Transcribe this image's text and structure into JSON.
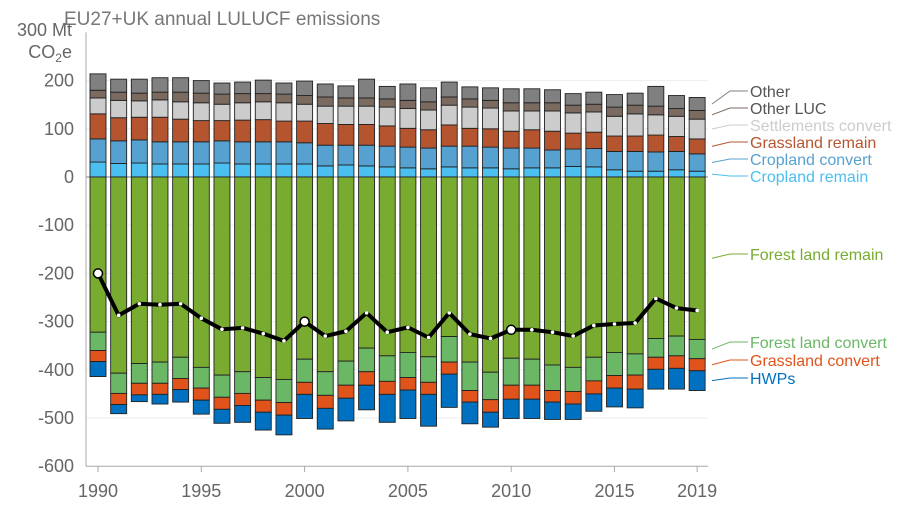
{
  "chart_data": {
    "type": "bar",
    "stacked": true,
    "title": "EU27+UK annual LULUCF emissions",
    "ylabel_line1": "300 Mt",
    "ylabel_line2": "CO",
    "ylabel_sub": "2",
    "ylabel_suffix": "e",
    "ylim": [
      -600,
      300
    ],
    "yticks": [
      200,
      100,
      0,
      -100,
      -200,
      -300,
      -400,
      -500,
      -600
    ],
    "xticks": [
      1990,
      1995,
      2000,
      2005,
      2010,
      2015,
      2019
    ],
    "grid": true,
    "legend_placement": "right",
    "x": [
      1990,
      1991,
      1992,
      1993,
      1994,
      1995,
      1996,
      1997,
      1998,
      1999,
      2000,
      2001,
      2002,
      2003,
      2004,
      2005,
      2006,
      2007,
      2008,
      2009,
      2010,
      2011,
      2012,
      2013,
      2014,
      2015,
      2016,
      2017,
      2018,
      2019
    ],
    "series": [
      {
        "name": "Cropland remain",
        "color": "#4bbfef",
        "values": [
          31,
          28,
          29,
          27,
          27,
          27,
          29,
          27,
          27,
          27,
          27,
          23,
          25,
          23,
          21,
          19,
          17,
          21,
          19,
          19,
          17,
          19,
          19,
          22,
          21,
          15,
          12,
          12,
          15,
          12
        ]
      },
      {
        "name": "Cropland convert",
        "color": "#57a1d0",
        "values": [
          48,
          47,
          48,
          46,
          46,
          46,
          46,
          46,
          46,
          46,
          44,
          43,
          41,
          43,
          43,
          43,
          43,
          43,
          45,
          43,
          43,
          41,
          37,
          36,
          38,
          38,
          41,
          40,
          38,
          36
        ]
      },
      {
        "name": "Grassland remain",
        "color": "#b55530",
        "values": [
          52,
          48,
          47,
          51,
          47,
          44,
          42,
          45,
          46,
          43,
          45,
          45,
          43,
          43,
          42,
          39,
          38,
          44,
          37,
          38,
          35,
          38,
          39,
          33,
          34,
          32,
          32,
          35,
          31,
          31
        ]
      },
      {
        "name": "Settlements convert",
        "color": "#cccccc",
        "values": [
          33,
          36,
          34,
          36,
          36,
          37,
          34,
          36,
          37,
          38,
          35,
          36,
          38,
          38,
          39,
          41,
          41,
          41,
          44,
          43,
          42,
          39,
          42,
          42,
          42,
          41,
          46,
          42,
          42,
          41
        ]
      },
      {
        "name": "Other LUC",
        "color": "#7a6a60",
        "values": [
          16,
          17,
          16,
          16,
          20,
          20,
          21,
          19,
          17,
          18,
          18,
          19,
          17,
          17,
          17,
          17,
          17,
          17,
          17,
          16,
          17,
          17,
          17,
          16,
          16,
          19,
          18,
          18,
          16,
          18
        ]
      },
      {
        "name": "Other",
        "color": "#808080",
        "values": [
          34,
          27,
          29,
          30,
          30,
          26,
          23,
          24,
          28,
          23,
          30,
          27,
          25,
          39,
          26,
          34,
          29,
          31,
          25,
          26,
          29,
          29,
          27,
          24,
          25,
          26,
          25,
          41,
          27,
          27
        ]
      },
      {
        "name": "Forest land remain",
        "color": "#78ab30",
        "values": [
          -322,
          -407,
          -387,
          -384,
          -374,
          -395,
          -411,
          -404,
          -416,
          -420,
          -378,
          -404,
          -382,
          -355,
          -371,
          -364,
          -373,
          -331,
          -384,
          -405,
          -376,
          -378,
          -390,
          -395,
          -374,
          -364,
          -367,
          -335,
          -330,
          -337
        ]
      },
      {
        "name": "Forest land convert",
        "color": "#6ab766",
        "values": [
          -38,
          -42,
          -41,
          -44,
          -44,
          -43,
          -46,
          -45,
          -47,
          -48,
          -48,
          -49,
          -50,
          -49,
          -53,
          -52,
          -53,
          -53,
          -59,
          -57,
          -56,
          -54,
          -53,
          -50,
          -49,
          -48,
          -44,
          -39,
          -41,
          -40
        ]
      },
      {
        "name": "Grassland convert",
        "color": "#e0541b",
        "values": [
          -23,
          -23,
          -24,
          -23,
          -23,
          -25,
          -25,
          -25,
          -25,
          -26,
          -25,
          -27,
          -27,
          -28,
          -27,
          -26,
          -25,
          -25,
          -24,
          -26,
          -29,
          -29,
          -24,
          -26,
          -27,
          -26,
          -29,
          -25,
          -26,
          -25
        ]
      },
      {
        "name": "HWPs",
        "color": "#0070c0",
        "values": [
          -31,
          -19,
          -14,
          -20,
          -26,
          -29,
          -29,
          -35,
          -37,
          -41,
          -50,
          -43,
          -47,
          -51,
          -58,
          -59,
          -66,
          -69,
          -45,
          -31,
          -40,
          -40,
          -36,
          -32,
          -36,
          -39,
          -39,
          -41,
          -43,
          -41
        ]
      }
    ],
    "net": {
      "color": "#000000",
      "values": [
        -200,
        -287,
        -263,
        -265,
        -263,
        -293,
        -316,
        -313,
        -325,
        -340,
        -300,
        -330,
        -320,
        -282,
        -322,
        -312,
        -333,
        -282,
        -326,
        -335,
        -317,
        -317,
        -322,
        -330,
        -308,
        -305,
        -303,
        -252,
        -272,
        -277
      ],
      "highlighted_years": [
        1990,
        2000,
        2010
      ]
    }
  }
}
